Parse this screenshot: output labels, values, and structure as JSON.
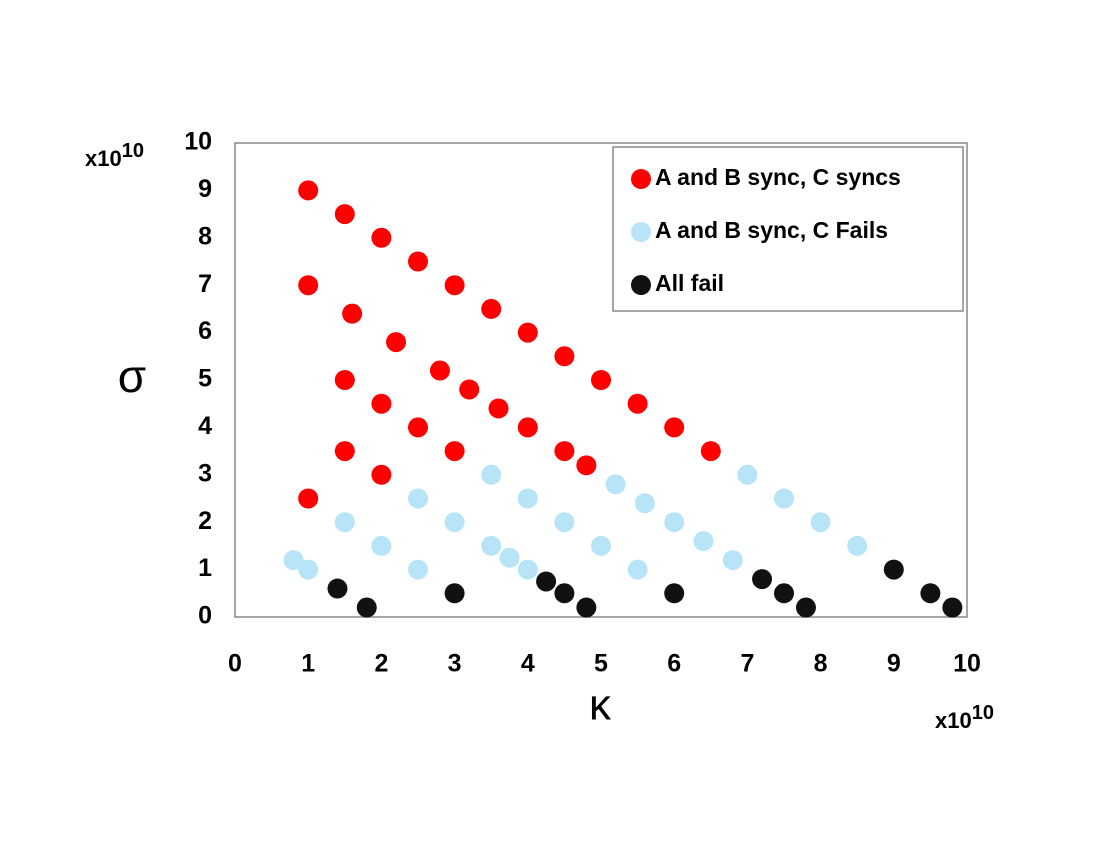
{
  "chart_data": {
    "type": "scatter",
    "x_label": "κ",
    "y_label": "σ",
    "x_scale_label": {
      "base": "x10",
      "exponent": "10"
    },
    "y_scale_label": {
      "base": "x10",
      "exponent": "10"
    },
    "xlim": [
      0,
      10
    ],
    "ylim": [
      0,
      10
    ],
    "xticks": [
      0,
      1,
      2,
      3,
      4,
      5,
      6,
      7,
      8,
      9,
      10
    ],
    "yticks": [
      0,
      1,
      2,
      3,
      4,
      5,
      6,
      7,
      8,
      9,
      10
    ],
    "grid": false,
    "legend": "upper-right",
    "series": [
      {
        "name": "A and B sync, C syncs",
        "color": "#ff0000",
        "x": [
          1,
          1.5,
          2,
          2.5,
          3,
          3.5,
          4,
          4.5,
          5,
          5.5,
          6,
          6.5,
          1,
          1.6,
          2.2,
          2.8,
          3.2,
          3.6,
          4,
          4.5,
          4.8,
          1.5,
          2,
          2.5,
          3,
          1.5,
          2,
          1
        ],
        "y": [
          9,
          8.5,
          8,
          7.5,
          7,
          6.5,
          6,
          5.5,
          5,
          4.5,
          4,
          3.5,
          7,
          6.4,
          5.8,
          5.2,
          4.8,
          4.4,
          4,
          3.5,
          3.2,
          5,
          4.5,
          4,
          3.5,
          3.5,
          3,
          2.5
        ]
      },
      {
        "name": "A and B sync, C Fails",
        "color": "#b8e4f8",
        "x": [
          0.8,
          1,
          1.5,
          2,
          2.5,
          2.5,
          3,
          3.5,
          3.5,
          3.75,
          4,
          4,
          4.5,
          5,
          5.2,
          5.5,
          5.6,
          6,
          6.4,
          6.8,
          7,
          7.5,
          8,
          8.5
        ],
        "y": [
          1.2,
          1,
          2,
          1.5,
          2.5,
          1,
          2,
          3,
          1.5,
          1.25,
          2.5,
          1,
          2,
          1.5,
          2.8,
          1,
          2.4,
          2,
          1.6,
          1.2,
          3,
          2.5,
          2,
          1.5
        ]
      },
      {
        "name": "All fail",
        "color": "#111111",
        "x": [
          1.4,
          1.8,
          3,
          4.25,
          4.5,
          4.8,
          6,
          7.2,
          7.5,
          7.8,
          9,
          9.5,
          9.8
        ],
        "y": [
          0.6,
          0.2,
          0.5,
          0.75,
          0.5,
          0.2,
          0.5,
          0.8,
          0.5,
          0.2,
          1,
          0.5,
          0.2
        ]
      }
    ]
  }
}
